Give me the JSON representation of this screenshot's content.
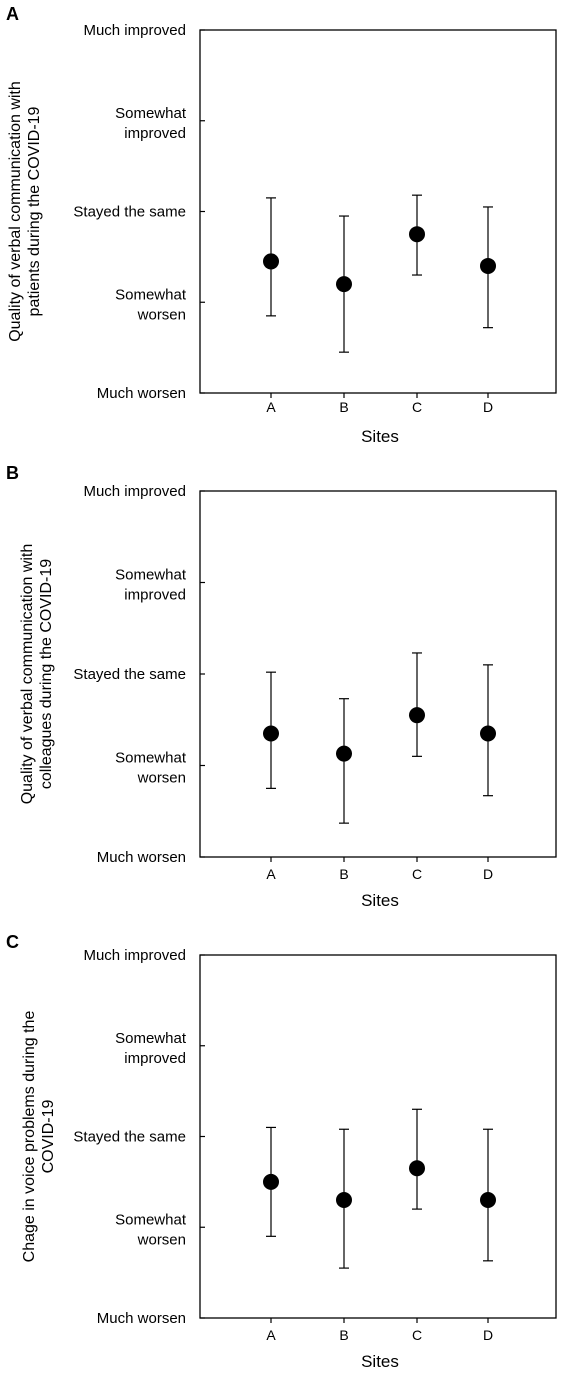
{
  "chart_data": [
    {
      "type": "scatter",
      "panel_label": "A",
      "categories": [
        "A",
        "B",
        "C",
        "D"
      ],
      "yticks": [
        "Much worsen",
        "Somewhat\nworsen",
        "Stayed the same",
        "Somewhat\nimproved",
        "Much improved"
      ],
      "ylim": [
        1,
        5
      ],
      "ylabel_lines": [
        "Quality of verbal communication with",
        "patients during the COVID-19"
      ],
      "xlabel": "Sites",
      "series": [
        {
          "values": [
            2.45,
            2.2,
            2.75,
            2.4
          ],
          "err_low": [
            1.85,
            1.45,
            2.3,
            1.72
          ],
          "err_high": [
            3.15,
            2.95,
            3.18,
            3.05
          ]
        }
      ],
      "grid": false
    },
    {
      "type": "scatter",
      "panel_label": "B",
      "categories": [
        "A",
        "B",
        "C",
        "D"
      ],
      "yticks": [
        "Much worsen",
        "Somewhat\nworsen",
        "Stayed the same",
        "Somewhat\nimproved",
        "Much improved"
      ],
      "ylim": [
        1,
        5
      ],
      "ylabel_lines": [
        "Quality of verbal communication with",
        "colleagues during the COVID-19"
      ],
      "xlabel": "Sites",
      "series": [
        {
          "values": [
            2.35,
            2.13,
            2.55,
            2.35
          ],
          "err_low": [
            1.75,
            1.37,
            2.1,
            1.67
          ],
          "err_high": [
            3.02,
            2.73,
            3.23,
            3.1
          ]
        }
      ],
      "grid": false
    },
    {
      "type": "scatter",
      "panel_label": "C",
      "categories": [
        "A",
        "B",
        "C",
        "D"
      ],
      "yticks": [
        "Much worsen",
        "Somewhat\nworsen",
        "Stayed the same",
        "Somewhat\nimproved",
        "Much improved"
      ],
      "ylim": [
        1,
        5
      ],
      "ylabel_lines": [
        "Chage in voice problems during the",
        "COVID-19"
      ],
      "xlabel": "Sites",
      "series": [
        {
          "values": [
            2.5,
            2.3,
            2.65,
            2.3
          ],
          "err_low": [
            1.9,
            1.55,
            2.2,
            1.63
          ],
          "err_high": [
            3.1,
            3.08,
            3.3,
            3.08
          ]
        }
      ],
      "grid": false
    }
  ]
}
